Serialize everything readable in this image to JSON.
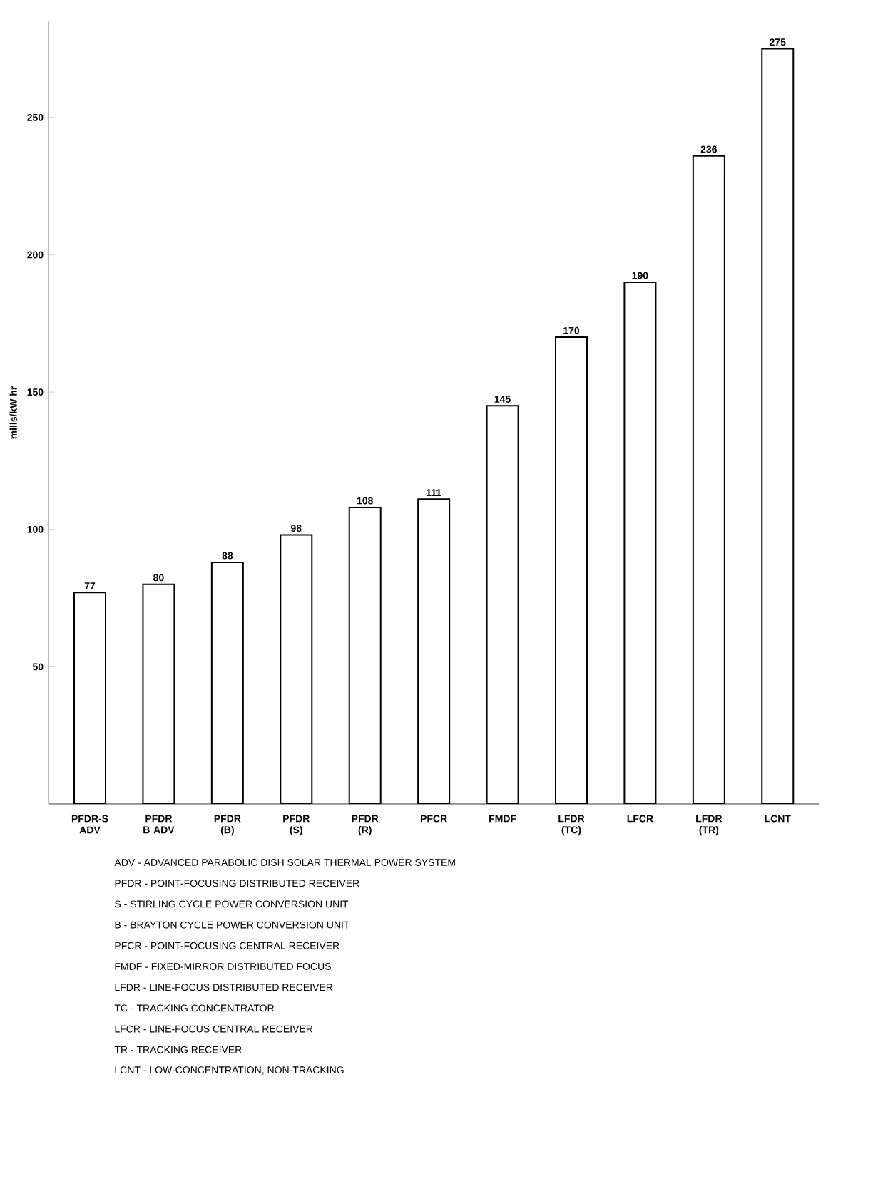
{
  "chart_data": {
    "type": "bar",
    "ylabel": "mills/kW hr",
    "categories": [
      "PFDR-S ADV",
      "PFDR B ADV",
      "PFDR (B)",
      "PFDR (S)",
      "PFDR (R)",
      "PFCR",
      "FMDF",
      "LFDR (TC)",
      "LFCR",
      "LFDR (TR)",
      "LCNT"
    ],
    "values": [
      77,
      80,
      88,
      98,
      108,
      111,
      145,
      170,
      190,
      236,
      275
    ],
    "color": "#ffffff",
    "ylim": [
      0,
      285
    ],
    "yticks": [
      50,
      100,
      150,
      200,
      250
    ],
    "data_labels": true,
    "grid": false,
    "annotations": [
      "ADV - ADVANCED PARABOLIC DISH SOLAR THERMAL POWER SYSTEM",
      "PFDR - POINT-FOCUSING DISTRIBUTED RECEIVER",
      "S - STIRLING CYCLE POWER CONVERSION UNIT",
      "B - BRAYTON CYCLE POWER CONVERSION UNIT",
      "PFCR - POINT-FOCUSING CENTRAL RECEIVER",
      "FMDF - FIXED-MIRROR DISTRIBUTED FOCUS",
      "LFDR - LINE-FOCUS DISTRIBUTED RECEIVER",
      "TC - TRACKING CONCENTRATOR",
      "LFCR - LINE-FOCUS CENTRAL RECEIVER",
      "TR - TRACKING RECEIVER",
      "LCNT - LOW-CONCENTRATION, NON-TRACKING"
    ]
  }
}
